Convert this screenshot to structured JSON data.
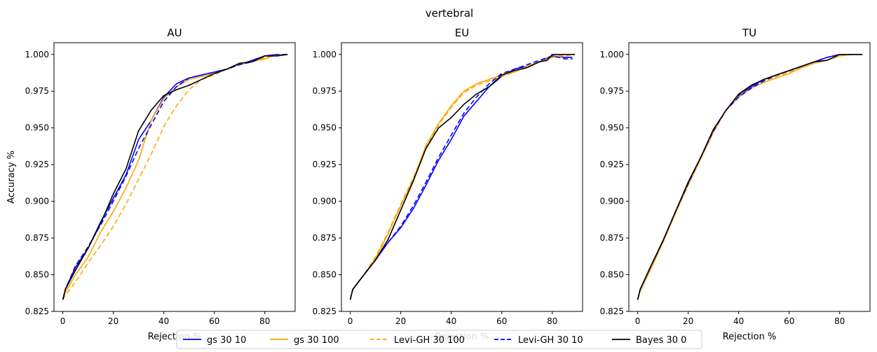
{
  "figure": {
    "suptitle": "vertebral"
  },
  "legend": [
    {
      "label": "gs 30 10",
      "color": "#0000ff",
      "dash": "solid"
    },
    {
      "label": "gs 30 100",
      "color": "#ffa500",
      "dash": "solid"
    },
    {
      "label": "Levi-GH 30 100",
      "color": "#ffa500",
      "dash": "dashed"
    },
    {
      "label": "Levi-GH 30 10",
      "color": "#0000ff",
      "dash": "dashed"
    },
    {
      "label": "Bayes 30 0",
      "color": "#000000",
      "dash": "solid"
    }
  ],
  "chart_data": [
    {
      "type": "line",
      "title": "AU",
      "xlabel": "Rejection %",
      "ylabel": "Accuracy %",
      "xlim": [
        -3.5,
        92
      ],
      "ylim": [
        0.825,
        1.008
      ],
      "xticks": [
        0,
        20,
        40,
        60,
        80
      ],
      "yticks": [
        0.825,
        0.85,
        0.875,
        0.9,
        0.925,
        0.95,
        0.975,
        1.0
      ],
      "ytick_labels": [
        "0.825",
        "0.850",
        "0.875",
        "0.900",
        "0.925",
        "0.950",
        "0.975",
        "1.000"
      ],
      "grid": false,
      "series": [
        {
          "name": "gs 30 10",
          "color": "#0000ff",
          "dash": "solid",
          "x": [
            0,
            1,
            5,
            10,
            15,
            20,
            25,
            30,
            35,
            40,
            45,
            50,
            55,
            60,
            65,
            70,
            75,
            80,
            85,
            89
          ],
          "y": [
            0.833,
            0.84,
            0.855,
            0.868,
            0.886,
            0.902,
            0.918,
            0.942,
            0.955,
            0.971,
            0.98,
            0.984,
            0.986,
            0.988,
            0.99,
            0.993,
            0.996,
            0.999,
            1.0,
            1.0
          ]
        },
        {
          "name": "gs 30 100",
          "color": "#ffa500",
          "dash": "solid",
          "x": [
            0,
            1,
            5,
            10,
            15,
            20,
            25,
            30,
            35,
            40,
            45,
            50,
            55,
            60,
            65,
            70,
            75,
            80,
            85,
            89
          ],
          "y": [
            0.833,
            0.838,
            0.85,
            0.862,
            0.879,
            0.893,
            0.909,
            0.928,
            0.955,
            0.97,
            0.978,
            0.983,
            0.985,
            0.987,
            0.99,
            0.993,
            0.995,
            0.997,
            1.0,
            1.0
          ]
        },
        {
          "name": "Levi-GH 30 100",
          "color": "#ffa500",
          "dash": "dashed",
          "x": [
            0,
            1,
            5,
            10,
            15,
            20,
            25,
            30,
            35,
            40,
            45,
            50,
            55,
            60,
            65,
            70,
            75,
            80,
            85,
            89
          ],
          "y": [
            0.833,
            0.836,
            0.845,
            0.858,
            0.87,
            0.883,
            0.898,
            0.915,
            0.932,
            0.951,
            0.965,
            0.976,
            0.983,
            0.986,
            0.99,
            0.994,
            0.995,
            0.998,
            1.0,
            1.0
          ]
        },
        {
          "name": "Levi-GH 30 10",
          "color": "#0000ff",
          "dash": "dashed",
          "x": [
            0,
            1,
            5,
            10,
            15,
            20,
            25,
            30,
            35,
            40,
            45,
            50,
            55,
            60,
            65,
            70,
            75,
            80,
            85,
            89
          ],
          "y": [
            0.833,
            0.84,
            0.856,
            0.869,
            0.884,
            0.9,
            0.917,
            0.936,
            0.952,
            0.968,
            0.978,
            0.984,
            0.986,
            0.988,
            0.99,
            0.993,
            0.995,
            0.999,
            1.0,
            1.0
          ]
        },
        {
          "name": "Bayes 30 0",
          "color": "#000000",
          "dash": "solid",
          "x": [
            0,
            1,
            5,
            10,
            15,
            20,
            25,
            30,
            35,
            40,
            45,
            50,
            55,
            60,
            65,
            70,
            75,
            80,
            85,
            89
          ],
          "y": [
            0.833,
            0.84,
            0.853,
            0.868,
            0.885,
            0.905,
            0.922,
            0.948,
            0.962,
            0.972,
            0.976,
            0.979,
            0.983,
            0.987,
            0.99,
            0.994,
            0.995,
            0.999,
            0.999,
            1.0
          ]
        }
      ]
    },
    {
      "type": "line",
      "title": "EU",
      "xlabel": "Rejection %",
      "ylabel": "",
      "xlim": [
        -3.5,
        92
      ],
      "ylim": [
        0.825,
        1.008
      ],
      "xticks": [
        0,
        20,
        40,
        60,
        80
      ],
      "yticks": [
        0.825,
        0.85,
        0.875,
        0.9,
        0.925,
        0.95,
        0.975,
        1.0
      ],
      "ytick_labels": [
        "0.825",
        "0.850",
        "0.875",
        "0.900",
        "0.925",
        "0.950",
        "0.975",
        "1.000"
      ],
      "grid": false,
      "series": [
        {
          "name": "gs 30 10",
          "color": "#0000ff",
          "dash": "solid",
          "x": [
            0,
            1,
            5,
            10,
            15,
            20,
            25,
            30,
            35,
            40,
            45,
            50,
            55,
            60,
            65,
            70,
            75,
            80,
            85,
            88
          ],
          "y": [
            0.833,
            0.84,
            0.849,
            0.86,
            0.872,
            0.882,
            0.895,
            0.911,
            0.928,
            0.942,
            0.958,
            0.968,
            0.978,
            0.985,
            0.99,
            0.992,
            0.995,
            0.999,
            0.998,
            0.998
          ]
        },
        {
          "name": "gs 30 100",
          "color": "#ffa500",
          "dash": "solid",
          "x": [
            0,
            1,
            5,
            10,
            15,
            20,
            25,
            30,
            35,
            40,
            45,
            50,
            55,
            60,
            65,
            70,
            75,
            80,
            85,
            89
          ],
          "y": [
            0.833,
            0.84,
            0.849,
            0.861,
            0.878,
            0.897,
            0.915,
            0.938,
            0.953,
            0.965,
            0.975,
            0.98,
            0.983,
            0.986,
            0.988,
            0.992,
            0.995,
            0.998,
            1.0,
            1.0
          ]
        },
        {
          "name": "Levi-GH 30 100",
          "color": "#ffa500",
          "dash": "dashed",
          "x": [
            0,
            1,
            5,
            10,
            15,
            20,
            25,
            30,
            35,
            40,
            45,
            50,
            55,
            60,
            65,
            70,
            75,
            80,
            85,
            89
          ],
          "y": [
            0.833,
            0.84,
            0.849,
            0.862,
            0.879,
            0.898,
            0.916,
            0.937,
            0.952,
            0.964,
            0.974,
            0.979,
            0.982,
            0.985,
            0.988,
            0.991,
            0.995,
            0.998,
            0.999,
            1.0
          ]
        },
        {
          "name": "Levi-GH 30 10",
          "color": "#0000ff",
          "dash": "dashed",
          "x": [
            0,
            1,
            5,
            10,
            15,
            20,
            25,
            30,
            35,
            40,
            45,
            50,
            55,
            60,
            65,
            70,
            75,
            80,
            85,
            88
          ],
          "y": [
            0.833,
            0.84,
            0.849,
            0.86,
            0.872,
            0.883,
            0.897,
            0.913,
            0.93,
            0.945,
            0.96,
            0.971,
            0.98,
            0.987,
            0.99,
            0.993,
            0.996,
            0.999,
            0.997,
            0.997
          ]
        },
        {
          "name": "Bayes 30 0",
          "color": "#000000",
          "dash": "solid",
          "x": [
            0,
            1,
            5,
            10,
            15,
            20,
            25,
            30,
            35,
            40,
            45,
            50,
            55,
            60,
            65,
            70,
            75,
            78,
            80,
            85,
            89
          ],
          "y": [
            0.833,
            0.84,
            0.849,
            0.86,
            0.874,
            0.894,
            0.914,
            0.936,
            0.95,
            0.957,
            0.966,
            0.973,
            0.978,
            0.986,
            0.989,
            0.991,
            0.995,
            0.996,
            1.0,
            1.0,
            1.0
          ]
        }
      ]
    },
    {
      "type": "line",
      "title": "TU",
      "xlabel": "Rejection %",
      "ylabel": "",
      "xlim": [
        -3.5,
        92
      ],
      "ylim": [
        0.825,
        1.008
      ],
      "xticks": [
        0,
        20,
        40,
        60,
        80
      ],
      "yticks": [
        0.825,
        0.85,
        0.875,
        0.9,
        0.925,
        0.95,
        0.975,
        1.0
      ],
      "ytick_labels": [
        "0.825",
        "0.850",
        "0.875",
        "0.900",
        "0.925",
        "0.950",
        "0.975",
        "1.000"
      ],
      "grid": false,
      "series": [
        {
          "name": "gs 30 10",
          "color": "#0000ff",
          "dash": "solid",
          "x": [
            0,
            1,
            5,
            10,
            15,
            20,
            25,
            30,
            35,
            40,
            45,
            50,
            55,
            60,
            65,
            70,
            75,
            80,
            85,
            89
          ],
          "y": [
            0.833,
            0.84,
            0.855,
            0.873,
            0.893,
            0.912,
            0.93,
            0.948,
            0.962,
            0.972,
            0.978,
            0.983,
            0.986,
            0.989,
            0.992,
            0.995,
            0.998,
            1.0,
            1.0,
            1.0
          ]
        },
        {
          "name": "gs 30 100",
          "color": "#ffa500",
          "dash": "solid",
          "x": [
            0,
            1,
            5,
            10,
            15,
            20,
            25,
            30,
            35,
            40,
            45,
            50,
            55,
            60,
            65,
            70,
            75,
            80,
            85,
            89
          ],
          "y": [
            0.833,
            0.839,
            0.853,
            0.872,
            0.892,
            0.911,
            0.929,
            0.947,
            0.962,
            0.971,
            0.977,
            0.981,
            0.984,
            0.987,
            0.991,
            0.994,
            0.996,
            0.999,
            1.0,
            1.0
          ]
        },
        {
          "name": "Levi-GH 30 100",
          "color": "#ffa500",
          "dash": "dashed",
          "x": [
            0,
            1,
            5,
            10,
            15,
            20,
            25,
            30,
            35,
            40,
            45,
            50,
            55,
            60,
            65,
            70,
            75,
            80,
            85,
            89
          ],
          "y": [
            0.833,
            0.839,
            0.854,
            0.872,
            0.893,
            0.911,
            0.93,
            0.948,
            0.962,
            0.972,
            0.977,
            0.982,
            0.985,
            0.988,
            0.991,
            0.994,
            0.996,
            0.999,
            1.0,
            1.0
          ]
        },
        {
          "name": "Levi-GH 30 10",
          "color": "#0000ff",
          "dash": "dashed",
          "x": [
            0,
            1,
            5,
            10,
            15,
            20,
            25,
            30,
            35,
            40,
            45,
            50,
            55,
            60,
            65,
            70,
            75,
            80,
            85,
            89
          ],
          "y": [
            0.833,
            0.84,
            0.855,
            0.873,
            0.893,
            0.912,
            0.93,
            0.948,
            0.962,
            0.971,
            0.977,
            0.982,
            0.986,
            0.989,
            0.992,
            0.995,
            0.998,
            1.0,
            1.0,
            1.0
          ]
        },
        {
          "name": "Bayes 30 0",
          "color": "#000000",
          "dash": "solid",
          "x": [
            0,
            1,
            5,
            10,
            15,
            20,
            25,
            30,
            35,
            40,
            45,
            50,
            55,
            60,
            65,
            70,
            75,
            80,
            85,
            89
          ],
          "y": [
            0.833,
            0.84,
            0.855,
            0.873,
            0.893,
            0.913,
            0.93,
            0.949,
            0.962,
            0.973,
            0.979,
            0.983,
            0.986,
            0.989,
            0.992,
            0.995,
            0.996,
            1.0,
            1.0,
            1.0
          ]
        }
      ]
    }
  ]
}
